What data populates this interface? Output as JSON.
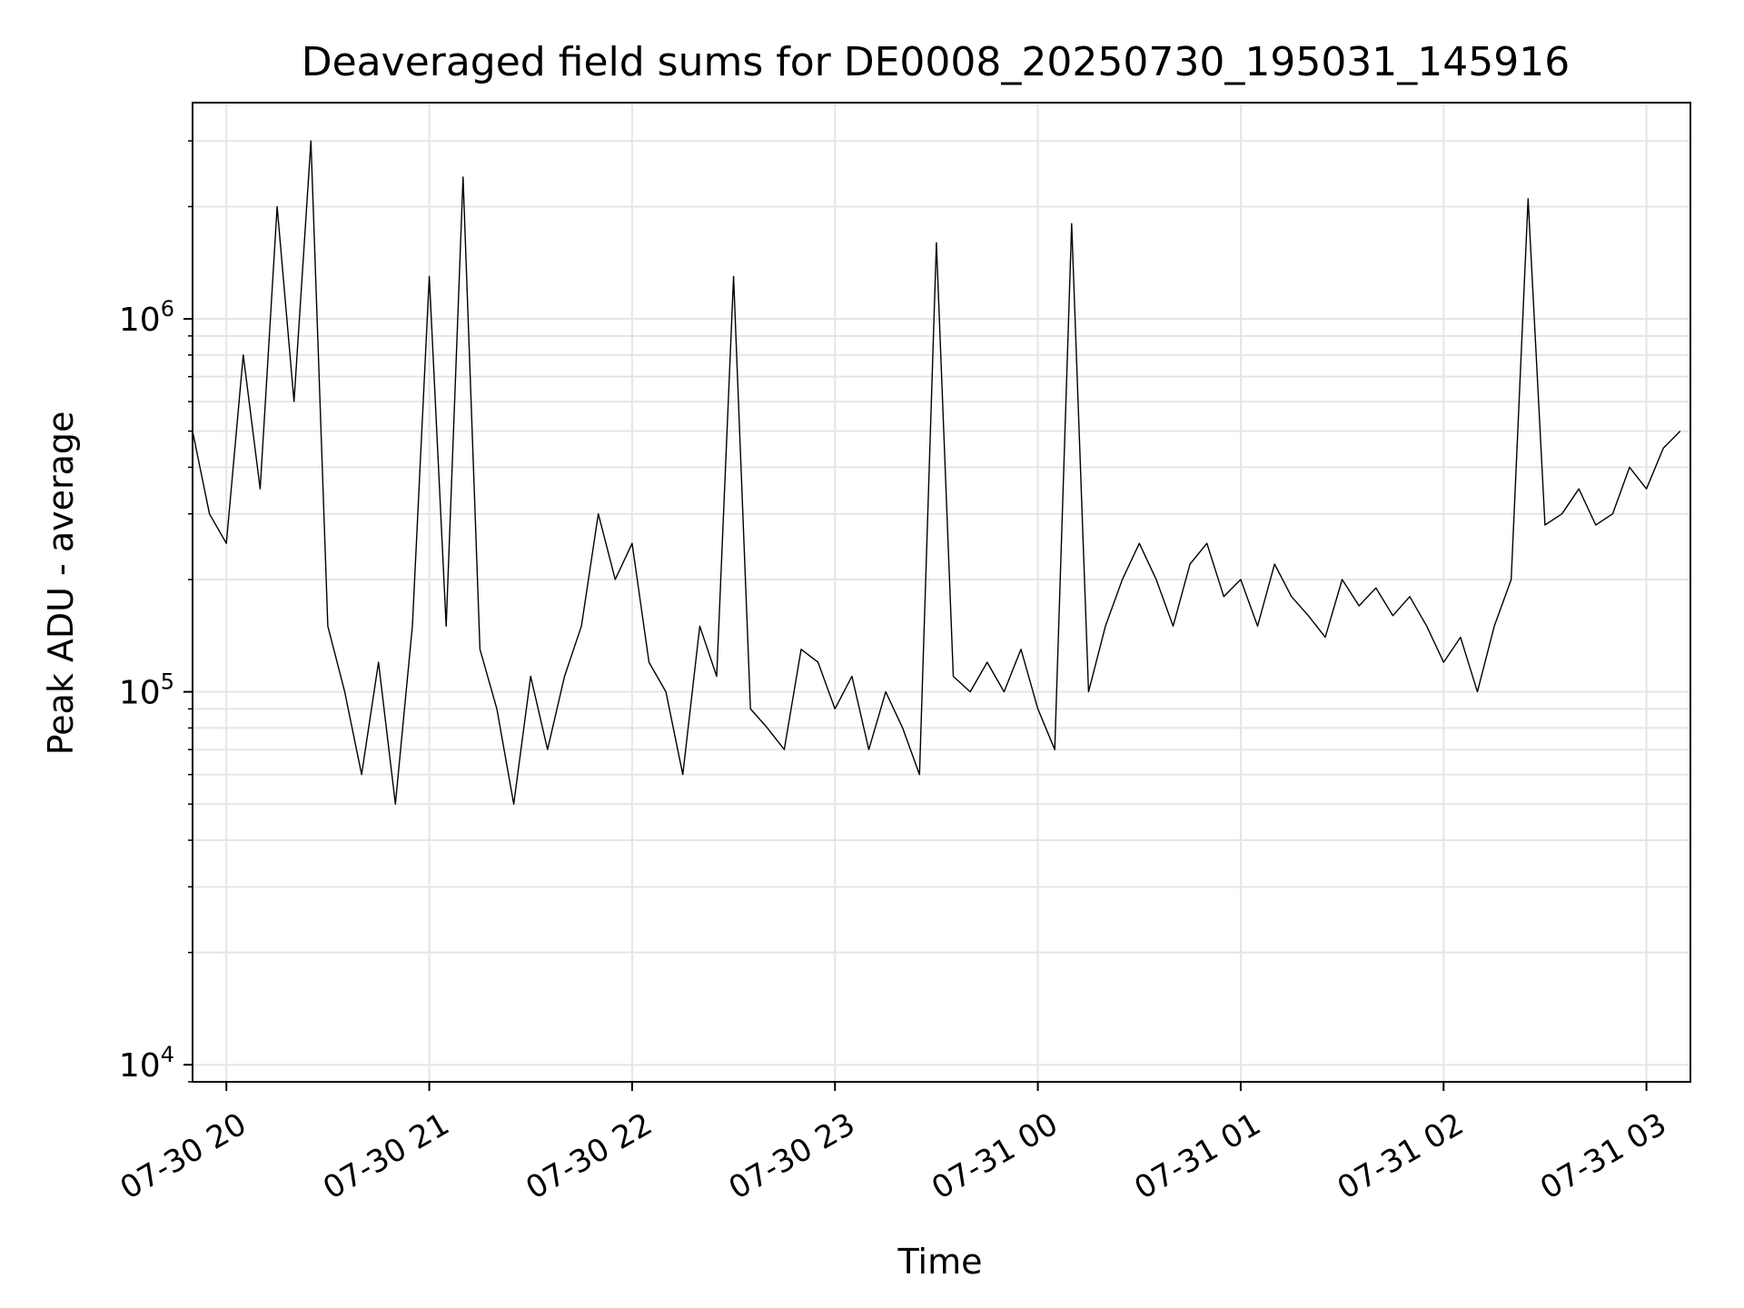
{
  "chart_data": {
    "type": "line",
    "title": "Deaveraged field sums for DE0008_20250730_195031_145916",
    "xlabel": "Time",
    "ylabel": "Peak ADU - average",
    "yscale": "log",
    "ylim": [
      9000,
      3800000
    ],
    "xlim": [
      "2025-07-30 19:50",
      "2025-07-31 03:13"
    ],
    "grid": true,
    "line_color": "#000000",
    "x_ticks": [
      {
        "value": "2025-07-30 20:00",
        "label": "07-30 20"
      },
      {
        "value": "2025-07-30 21:00",
        "label": "07-30 21"
      },
      {
        "value": "2025-07-30 22:00",
        "label": "07-30 22"
      },
      {
        "value": "2025-07-30 23:00",
        "label": "07-30 23"
      },
      {
        "value": "2025-07-31 00:00",
        "label": "07-31 00"
      },
      {
        "value": "2025-07-31 01:00",
        "label": "07-31 01"
      },
      {
        "value": "2025-07-31 02:00",
        "label": "07-31 02"
      },
      {
        "value": "2025-07-31 03:00",
        "label": "07-31 03"
      }
    ],
    "y_ticks": [
      {
        "value": 10000,
        "base": "10",
        "exp": "4"
      },
      {
        "value": 100000,
        "base": "10",
        "exp": "5"
      },
      {
        "value": 1000000,
        "base": "10",
        "exp": "6"
      }
    ],
    "series": [
      {
        "x": [
          "2025-07-30 19:50",
          "2025-07-30 19:55",
          "2025-07-30 20:00",
          "2025-07-30 20:05",
          "2025-07-30 20:10",
          "2025-07-30 20:15",
          "2025-07-30 20:20",
          "2025-07-30 20:25",
          "2025-07-30 20:30",
          "2025-07-30 20:35",
          "2025-07-30 20:40",
          "2025-07-30 20:45",
          "2025-07-30 20:50",
          "2025-07-30 20:55",
          "2025-07-30 21:00",
          "2025-07-30 21:05",
          "2025-07-30 21:10",
          "2025-07-30 21:15",
          "2025-07-30 21:20",
          "2025-07-30 21:25",
          "2025-07-30 21:30",
          "2025-07-30 21:35",
          "2025-07-30 21:40",
          "2025-07-30 21:45",
          "2025-07-30 21:50",
          "2025-07-30 21:55",
          "2025-07-30 22:00",
          "2025-07-30 22:05",
          "2025-07-30 22:10",
          "2025-07-30 22:15",
          "2025-07-30 22:20",
          "2025-07-30 22:25",
          "2025-07-30 22:30",
          "2025-07-30 22:35",
          "2025-07-30 22:40",
          "2025-07-30 22:45",
          "2025-07-30 22:50",
          "2025-07-30 22:55",
          "2025-07-30 23:00",
          "2025-07-30 23:05",
          "2025-07-30 23:10",
          "2025-07-30 23:15",
          "2025-07-30 23:20",
          "2025-07-30 23:25",
          "2025-07-30 23:30",
          "2025-07-30 23:35",
          "2025-07-30 23:40",
          "2025-07-30 23:45",
          "2025-07-30 23:50",
          "2025-07-30 23:55",
          "2025-07-31 00:00",
          "2025-07-31 00:05",
          "2025-07-31 00:10",
          "2025-07-31 00:15",
          "2025-07-31 00:20",
          "2025-07-31 00:25",
          "2025-07-31 00:30",
          "2025-07-31 00:35",
          "2025-07-31 00:40",
          "2025-07-31 00:45",
          "2025-07-31 00:50",
          "2025-07-31 00:55",
          "2025-07-31 01:00",
          "2025-07-31 01:05",
          "2025-07-31 01:10",
          "2025-07-31 01:15",
          "2025-07-31 01:20",
          "2025-07-31 01:25",
          "2025-07-31 01:30",
          "2025-07-31 01:35",
          "2025-07-31 01:40",
          "2025-07-31 01:45",
          "2025-07-31 01:50",
          "2025-07-31 01:55",
          "2025-07-31 02:00",
          "2025-07-31 02:05",
          "2025-07-31 02:10",
          "2025-07-31 02:15",
          "2025-07-31 02:20",
          "2025-07-31 02:25",
          "2025-07-31 02:30",
          "2025-07-31 02:35",
          "2025-07-31 02:40",
          "2025-07-31 02:45",
          "2025-07-31 02:50",
          "2025-07-31 02:55",
          "2025-07-31 03:00",
          "2025-07-31 03:05",
          "2025-07-31 03:10"
        ],
        "y": [
          500000,
          300000,
          250000,
          800000,
          350000,
          2000000,
          600000,
          3000000,
          150000,
          100000,
          60000,
          120000,
          50000,
          150000,
          1300000,
          150000,
          2400000,
          130000,
          90000,
          50000,
          110000,
          70000,
          110000,
          150000,
          300000,
          200000,
          250000,
          120000,
          100000,
          60000,
          150000,
          110000,
          1300000,
          90000,
          80000,
          70000,
          130000,
          120000,
          90000,
          110000,
          70000,
          100000,
          80000,
          60000,
          1600000,
          110000,
          100000,
          120000,
          100000,
          130000,
          90000,
          70000,
          1800000,
          100000,
          150000,
          200000,
          250000,
          200000,
          150000,
          220000,
          250000,
          180000,
          200000,
          150000,
          220000,
          180000,
          160000,
          140000,
          200000,
          170000,
          190000,
          160000,
          180000,
          150000,
          120000,
          140000,
          100000,
          150000,
          200000,
          2100000,
          280000,
          300000,
          350000,
          280000,
          300000,
          400000,
          350000,
          450000,
          500000
        ]
      }
    ]
  }
}
